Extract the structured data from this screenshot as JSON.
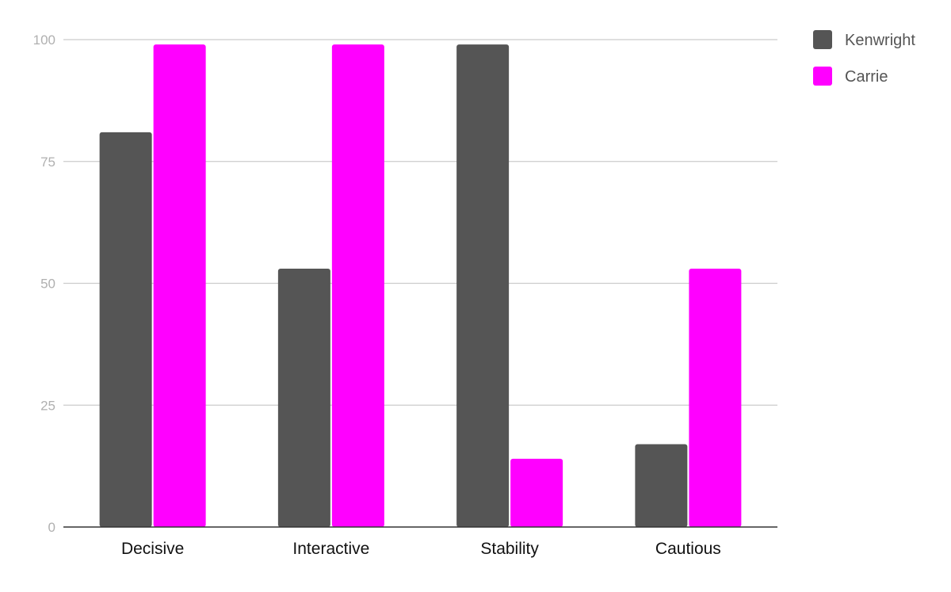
{
  "chart_data": {
    "type": "bar",
    "title": "",
    "xlabel": "",
    "ylabel": "",
    "categories": [
      "Decisive",
      "Interactive",
      "Stability",
      "Cautious"
    ],
    "series": [
      {
        "name": "Kenwright",
        "color": "#555555",
        "values": [
          81,
          53,
          99,
          17
        ]
      },
      {
        "name": "Carrie",
        "color": "#ff00ff",
        "values": [
          99,
          99,
          14,
          53
        ]
      }
    ],
    "ylim": [
      0,
      100
    ],
    "yticks": [
      0,
      25,
      50,
      75,
      100
    ],
    "grid": true,
    "legend_position": "top-right",
    "colors": {
      "gridline": "#cccccc",
      "axis": "#333333",
      "tick_label": "#b0b0b0",
      "category_label": "#111111",
      "legend_label": "#555555"
    }
  }
}
